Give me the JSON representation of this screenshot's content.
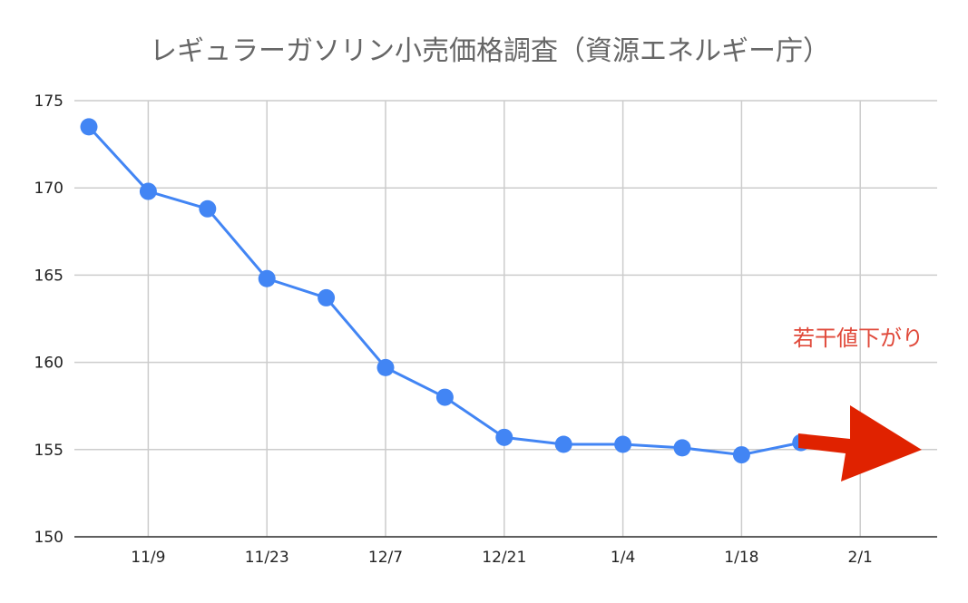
{
  "chart_data": {
    "type": "line",
    "title": "レギュラーガソリン小売価格調査（資源エネルギー庁）",
    "xlabel": "",
    "ylabel": "",
    "x": [
      "11/2",
      "11/9",
      "11/16",
      "11/23",
      "11/30",
      "12/7",
      "12/14",
      "12/21",
      "12/28",
      "1/4",
      "1/11",
      "1/18",
      "1/25"
    ],
    "x_ticks": [
      "11/9",
      "11/23",
      "12/7",
      "12/21",
      "1/4",
      "1/18",
      "2/1"
    ],
    "y_ticks": [
      150,
      155,
      160,
      165,
      170,
      175
    ],
    "ylim": [
      150,
      175
    ],
    "grid": true,
    "series": [
      {
        "color": "#4285f4",
        "values": [
          173.5,
          169.8,
          168.8,
          164.8,
          163.7,
          159.7,
          158.0,
          155.7,
          155.3,
          155.3,
          155.1,
          154.7,
          155.4
        ]
      }
    ],
    "annotation": {
      "text": "若干値下がり",
      "color": "#e0493a",
      "arrow_color": "#e02200"
    }
  }
}
